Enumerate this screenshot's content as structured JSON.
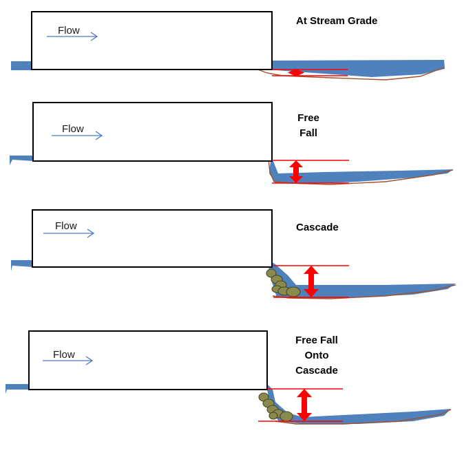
{
  "panels": [
    {
      "id": "at-stream-grade",
      "title_lines": [
        "At Stream Grade"
      ],
      "flow_label": "Flow",
      "rocks": false
    },
    {
      "id": "free-fall",
      "title_lines": [
        "Free",
        "Fall"
      ],
      "flow_label": "Flow",
      "rocks": false
    },
    {
      "id": "cascade",
      "title_lines": [
        "Cascade"
      ],
      "flow_label": "Flow",
      "rocks": true
    },
    {
      "id": "free-fall-onto-cascade",
      "title_lines": [
        "Free Fall",
        "Onto",
        "Cascade"
      ],
      "flow_label": "Flow",
      "rocks": true
    }
  ],
  "colors": {
    "water": "#4f81bd",
    "flow_arrow": "#4a78c2",
    "reference_lines": "#ff0000",
    "streambed": "#a0522d",
    "rocks": "#8b8a4e",
    "culvert_outline": "#000000"
  }
}
